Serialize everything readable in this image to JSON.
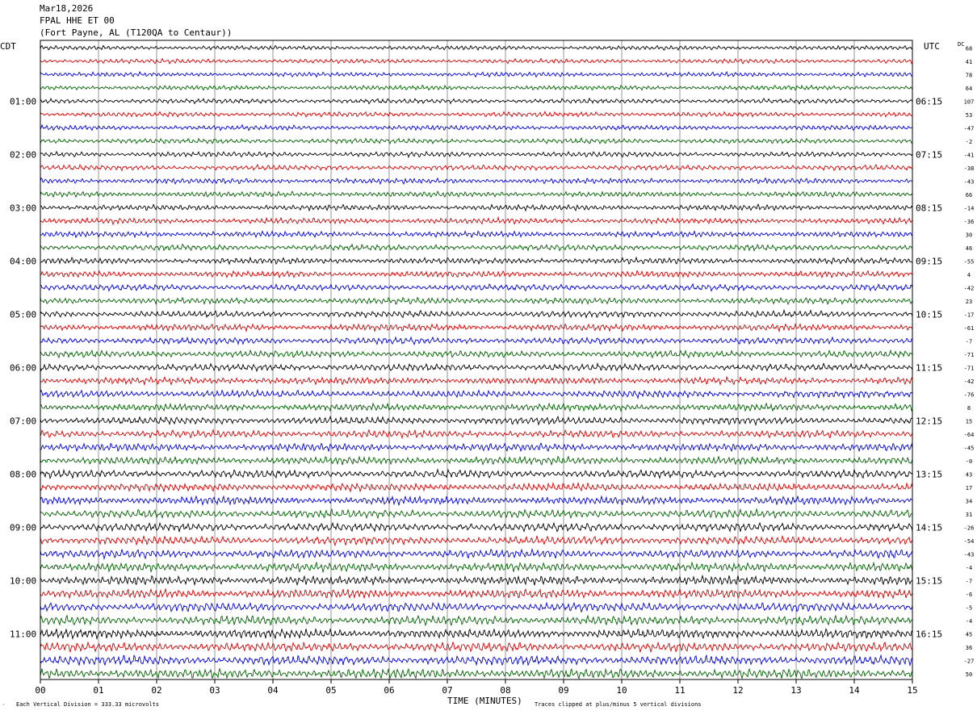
{
  "header": {
    "date": "Mar18,2026",
    "station": "FPAL HHE ET 00",
    "location": "(Fort Payne, AL (T120QA to Centaur))"
  },
  "left_axis_label": "CDT",
  "right_axis_label": "UTC",
  "dc_label": "DC",
  "footer": {
    "scale_note": "Each Vertical Division =  333.33 microvolts",
    "xlabel": "TIME (MINUTES)",
    "clip_note": "Traces clipped at plus/minus 5 vertical divisions",
    "corner_mark": "´"
  },
  "chart_data": {
    "type": "line",
    "title": "FPAL HHE ET 00",
    "xlabel": "TIME (MINUTES)",
    "xlim": [
      0,
      15
    ],
    "x_ticks": [
      "00",
      "01",
      "02",
      "03",
      "04",
      "05",
      "06",
      "07",
      "08",
      "09",
      "10",
      "11",
      "12",
      "13",
      "14",
      "15"
    ],
    "rows_per_hour": 4,
    "row_count": 48,
    "trace_colors": [
      "#000000",
      "#d00000",
      "#0000d0",
      "#006000"
    ],
    "left_hour_labels": [
      "01:00",
      "02:00",
      "03:00",
      "04:00",
      "05:00",
      "06:00",
      "07:00",
      "08:00",
      "09:00",
      "10:00",
      "11:00"
    ],
    "right_hour_labels": [
      "06:15",
      "07:15",
      "08:15",
      "09:15",
      "10:15",
      "11:15",
      "12:15",
      "13:15",
      "14:15",
      "15:15",
      "16:15"
    ],
    "dc_offsets": [
      "68",
      "41",
      "78",
      "64",
      "107",
      "53",
      "-47",
      "-2",
      "-41",
      "-38",
      "-43",
      "66",
      "-14",
      "-36",
      "30",
      "46",
      "-55",
      "4",
      "-42",
      "23",
      "-17",
      "-61",
      "-7",
      "-71",
      "-71",
      "-42",
      "-76",
      "8",
      "15",
      "-64",
      "-45",
      "-0",
      "43",
      "17",
      "34",
      "31",
      "-26",
      "-54",
      "-43",
      "-4",
      "-7",
      "-6",
      "-5",
      "-4",
      "45",
      "36",
      "-27",
      "50"
    ],
    "grid": true
  }
}
